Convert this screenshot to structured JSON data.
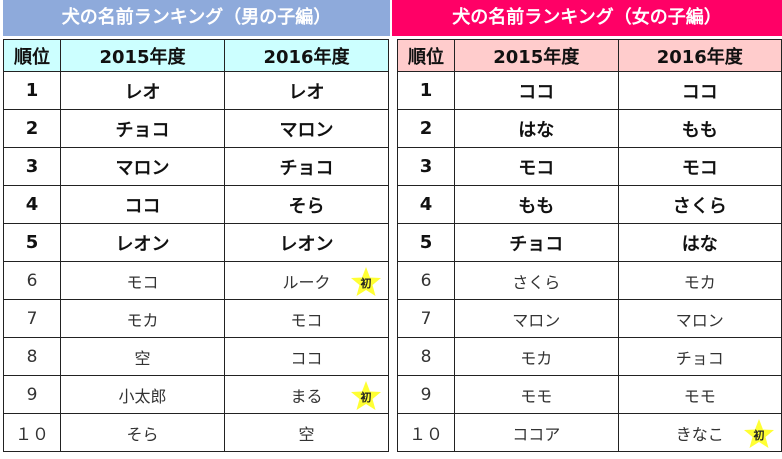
{
  "boys": {
    "title": "犬の名前ランキング（男の子編）",
    "headers": [
      "順位",
      "2015年度",
      "2016年度"
    ],
    "rows": [
      {
        "rank": "1",
        "y2015": "レオ",
        "y2016": "レオ"
      },
      {
        "rank": "2",
        "y2015": "チョコ",
        "y2016": "マロン"
      },
      {
        "rank": "3",
        "y2015": "マロン",
        "y2016": "チョコ"
      },
      {
        "rank": "4",
        "y2015": "ココ",
        "y2016": "そら"
      },
      {
        "rank": "5",
        "y2015": "レオン",
        "y2016": "レオン"
      },
      {
        "rank": "6",
        "y2015": "モコ",
        "y2016": "ルーク",
        "new": true
      },
      {
        "rank": "7",
        "y2015": "モカ",
        "y2016": "モコ"
      },
      {
        "rank": "8",
        "y2015": "空",
        "y2016": "ココ"
      },
      {
        "rank": "9",
        "y2015": "小太郎",
        "y2016": "まる",
        "new": true
      },
      {
        "rank": "１０",
        "y2015": "そら",
        "y2016": "空"
      }
    ]
  },
  "girls": {
    "title": "犬の名前ランキング（女の子編）",
    "headers": [
      "順位",
      "2015年度",
      "2016年度"
    ],
    "rows": [
      {
        "rank": "1",
        "y2015": "ココ",
        "y2016": "ココ"
      },
      {
        "rank": "2",
        "y2015": "はな",
        "y2016": "もも"
      },
      {
        "rank": "3",
        "y2015": "モコ",
        "y2016": "モコ"
      },
      {
        "rank": "4",
        "y2015": "もも",
        "y2016": "さくら"
      },
      {
        "rank": "5",
        "y2015": "チョコ",
        "y2016": "はな"
      },
      {
        "rank": "6",
        "y2015": "さくら",
        "y2016": "モカ"
      },
      {
        "rank": "7",
        "y2015": "マロン",
        "y2016": "マロン"
      },
      {
        "rank": "8",
        "y2015": "モカ",
        "y2016": "チョコ"
      },
      {
        "rank": "9",
        "y2015": "モモ",
        "y2016": "モモ"
      },
      {
        "rank": "１０",
        "y2015": "ココア",
        "y2016": "きなこ",
        "new": true
      }
    ]
  },
  "new_badge": "初",
  "colors": {
    "boys_title": "#8eaadb",
    "girls_title": "#ff0066",
    "boys_header": "#ccffff",
    "girls_header": "#ffcccc",
    "star": "#ffff33"
  }
}
